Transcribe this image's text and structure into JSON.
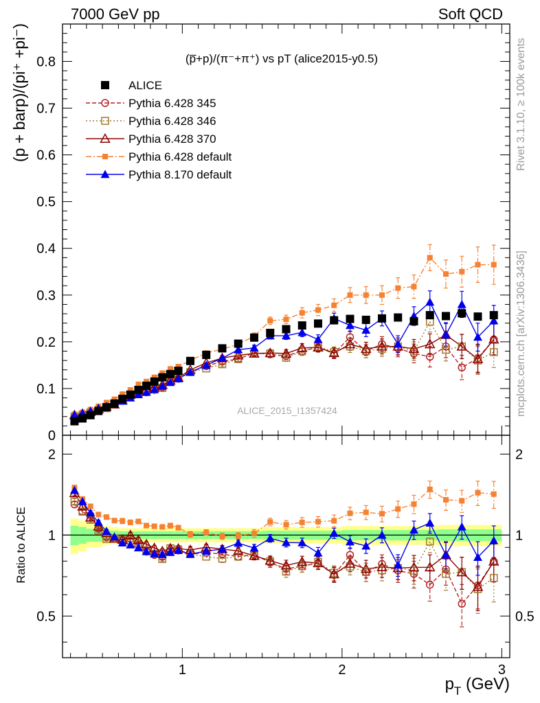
{
  "header": {
    "left": "7000 GeV pp",
    "right": "Soft QCD"
  },
  "side_labels": {
    "rivet": "Rivet 3.1.10, ≥ 100k events",
    "mcplots": "mcplots.cern.ch [arXiv:1306.3436]"
  },
  "watermark": "ALICE_2015_I1357424",
  "plot_title": "(p̅+p)/(π⁻+π⁺) vs pT (alice2015-y0.5)",
  "chart_data": [
    {
      "type": "scatter",
      "panel": "main",
      "title": "(p̅+p)/(π⁻+π⁺) vs pT (alice2015-y0.5)",
      "xlabel": "p_T (GeV)",
      "ylabel": "(p + barp)/(pi⁺ +pi⁻)",
      "xlim": [
        0.25,
        3.05
      ],
      "ylim": [
        0,
        0.88
      ],
      "yticks": [
        0.1,
        0.2,
        0.3,
        0.4,
        0.5,
        0.6,
        0.7,
        0.8
      ],
      "xticks": [
        1,
        2,
        3
      ],
      "legend_position": "top-left",
      "x": [
        0.325,
        0.375,
        0.425,
        0.475,
        0.525,
        0.575,
        0.625,
        0.675,
        0.725,
        0.775,
        0.825,
        0.875,
        0.925,
        0.975,
        1.05,
        1.15,
        1.25,
        1.35,
        1.45,
        1.55,
        1.65,
        1.75,
        1.85,
        1.95,
        2.05,
        2.15,
        2.25,
        2.35,
        2.45,
        2.55,
        2.65,
        2.75,
        2.85,
        2.95
      ],
      "series": [
        {
          "name": "ALICE",
          "style": "data",
          "color": "#000000",
          "values": [
            0.03,
            0.036,
            0.043,
            0.052,
            0.06,
            0.068,
            0.078,
            0.087,
            0.097,
            0.106,
            0.115,
            0.124,
            0.131,
            0.138,
            0.159,
            0.172,
            0.186,
            0.196,
            0.209,
            0.219,
            0.227,
            0.235,
            0.239,
            0.246,
            0.249,
            0.247,
            0.25,
            0.252,
            0.244,
            0.257,
            0.255,
            0.261,
            0.254,
            0.257
          ],
          "syst_rel": [
            0.15,
            0.13,
            0.1,
            0.1,
            0.08,
            0.07,
            0.06,
            0.06,
            0.06,
            0.06,
            0.06,
            0.06,
            0.06,
            0.06,
            0.06,
            0.06,
            0.06,
            0.06,
            0.06,
            0.07,
            0.07,
            0.07,
            0.07,
            0.07,
            0.08,
            0.08,
            0.08,
            0.08,
            0.08,
            0.08,
            0.09,
            0.09,
            0.09,
            0.09
          ]
        },
        {
          "name": "Pythia 6.428 345",
          "style": "open-circle",
          "color": "#b22222",
          "values": [
            0.039,
            0.044,
            0.051,
            0.055,
            0.059,
            0.066,
            0.075,
            0.082,
            0.089,
            0.092,
            0.097,
            0.103,
            0.115,
            0.121,
            0.135,
            0.148,
            0.158,
            0.163,
            0.177,
            0.173,
            0.17,
            0.18,
            0.188,
            0.175,
            0.21,
            0.18,
            0.195,
            0.186,
            0.175,
            0.168,
            0.19,
            0.145,
            0.165,
            0.205
          ],
          "errors": [
            0.001,
            0.001,
            0.001,
            0.001,
            0.001,
            0.001,
            0.002,
            0.002,
            0.002,
            0.002,
            0.002,
            0.002,
            0.003,
            0.003,
            0.004,
            0.004,
            0.005,
            0.005,
            0.006,
            0.007,
            0.008,
            0.009,
            0.01,
            0.011,
            0.013,
            0.014,
            0.016,
            0.018,
            0.02,
            0.022,
            0.024,
            0.026,
            0.03,
            0.033
          ]
        },
        {
          "name": "Pythia 6.428 346",
          "style": "open-square",
          "color": "#a0782d",
          "values": [
            0.04,
            0.044,
            0.049,
            0.054,
            0.058,
            0.066,
            0.075,
            0.083,
            0.09,
            0.093,
            0.098,
            0.101,
            0.117,
            0.122,
            0.135,
            0.143,
            0.152,
            0.163,
            0.175,
            0.175,
            0.166,
            0.18,
            0.19,
            0.178,
            0.19,
            0.18,
            0.185,
            0.19,
            0.18,
            0.243,
            0.183,
            0.19,
            0.16,
            0.178
          ],
          "errors": [
            0.001,
            0.001,
            0.001,
            0.001,
            0.001,
            0.001,
            0.002,
            0.002,
            0.002,
            0.002,
            0.002,
            0.002,
            0.003,
            0.003,
            0.004,
            0.004,
            0.005,
            0.005,
            0.006,
            0.007,
            0.008,
            0.009,
            0.01,
            0.011,
            0.013,
            0.014,
            0.016,
            0.018,
            0.02,
            0.022,
            0.024,
            0.026,
            0.03,
            0.033
          ]
        },
        {
          "name": "Pythia 6.428 370",
          "style": "open-triangle",
          "color": "#8b0000",
          "values": [
            0.043,
            0.046,
            0.05,
            0.056,
            0.061,
            0.066,
            0.075,
            0.087,
            0.093,
            0.098,
            0.103,
            0.108,
            0.117,
            0.123,
            0.14,
            0.155,
            0.165,
            0.171,
            0.175,
            0.176,
            0.175,
            0.187,
            0.188,
            0.176,
            0.195,
            0.185,
            0.19,
            0.19,
            0.185,
            0.195,
            0.215,
            0.19,
            0.163,
            0.205
          ],
          "errors": [
            0.001,
            0.001,
            0.001,
            0.001,
            0.001,
            0.001,
            0.002,
            0.002,
            0.002,
            0.002,
            0.002,
            0.002,
            0.003,
            0.003,
            0.004,
            0.004,
            0.005,
            0.005,
            0.006,
            0.007,
            0.008,
            0.009,
            0.01,
            0.011,
            0.013,
            0.014,
            0.016,
            0.018,
            0.02,
            0.022,
            0.024,
            0.026,
            0.03,
            0.033
          ]
        },
        {
          "name": "Pythia 6.428 default",
          "style": "filled-square-small",
          "color": "#f58232",
          "values": [
            0.045,
            0.049,
            0.055,
            0.062,
            0.07,
            0.077,
            0.088,
            0.097,
            0.109,
            0.115,
            0.124,
            0.133,
            0.142,
            0.147,
            0.16,
            0.176,
            0.184,
            0.195,
            0.212,
            0.245,
            0.248,
            0.262,
            0.268,
            0.278,
            0.3,
            0.3,
            0.3,
            0.315,
            0.318,
            0.38,
            0.345,
            0.35,
            0.365,
            0.365
          ],
          "errors": [
            0.001,
            0.001,
            0.001,
            0.001,
            0.001,
            0.001,
            0.002,
            0.002,
            0.002,
            0.002,
            0.002,
            0.002,
            0.003,
            0.003,
            0.004,
            0.004,
            0.005,
            0.005,
            0.007,
            0.008,
            0.009,
            0.011,
            0.012,
            0.014,
            0.016,
            0.018,
            0.02,
            0.022,
            0.025,
            0.028,
            0.03,
            0.033,
            0.038,
            0.042
          ]
        },
        {
          "name": "Pythia 8.170 default",
          "style": "filled-triangle",
          "color": "#0000ee",
          "values": [
            0.044,
            0.048,
            0.052,
            0.058,
            0.062,
            0.067,
            0.073,
            0.08,
            0.087,
            0.092,
            0.098,
            0.105,
            0.113,
            0.121,
            0.135,
            0.15,
            0.165,
            0.183,
            0.187,
            0.213,
            0.213,
            0.22,
            0.205,
            0.25,
            0.235,
            0.225,
            0.25,
            0.195,
            0.255,
            0.285,
            0.215,
            0.28,
            0.21,
            0.245
          ],
          "errors": [
            0.001,
            0.001,
            0.001,
            0.001,
            0.001,
            0.001,
            0.002,
            0.002,
            0.002,
            0.002,
            0.002,
            0.002,
            0.003,
            0.003,
            0.004,
            0.004,
            0.005,
            0.005,
            0.006,
            0.007,
            0.008,
            0.009,
            0.01,
            0.011,
            0.013,
            0.014,
            0.016,
            0.018,
            0.02,
            0.024,
            0.026,
            0.028,
            0.03,
            0.033
          ]
        }
      ]
    },
    {
      "type": "scatter",
      "panel": "ratio",
      "ylabel": "Ratio to ALICE",
      "xlabel": "p_T (GeV)",
      "xlim": [
        0.25,
        3.05
      ],
      "ylim": [
        0.35,
        2.35
      ],
      "yticks": [
        0.5,
        1,
        2
      ],
      "reference_line": 1,
      "description": "Each Pythia series divided by ALICE; yellow band = total uncertainty, green band = statistical"
    }
  ]
}
